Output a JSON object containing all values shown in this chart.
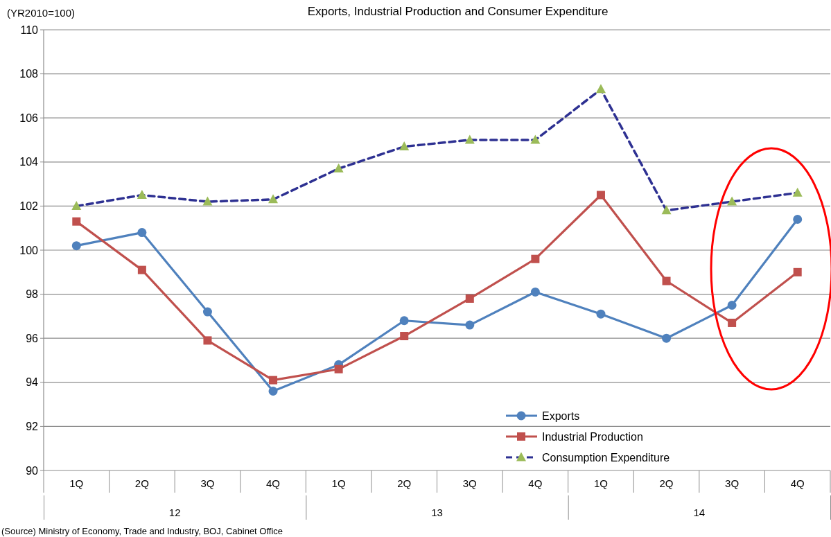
{
  "chart_data": {
    "type": "line",
    "title": "Exports, Industrial Production and Consumer Expenditure",
    "ylabel": "(YR2010=100)",
    "categories": [
      "1Q",
      "2Q",
      "3Q",
      "4Q",
      "1Q",
      "2Q",
      "3Q",
      "4Q",
      "1Q",
      "2Q",
      "3Q",
      "4Q"
    ],
    "annotations": [
      "12",
      "13",
      "14",
      "(Source) Ministry of Economy, Trade and Industry, BOJ, Cabinet Office"
    ],
    "series": [
      {
        "name": "Exports",
        "color": "#4f81bd",
        "marker": "circle",
        "line_style": "solid",
        "values": [
          100.2,
          100.8,
          97.2,
          93.6,
          94.8,
          96.8,
          96.6,
          98.1,
          97.1,
          96.0,
          97.5,
          101.4
        ]
      },
      {
        "name": "Industrial Production",
        "color": "#c0504d",
        "marker": "square",
        "line_style": "solid",
        "values": [
          101.3,
          99.1,
          95.9,
          94.1,
          94.6,
          96.1,
          97.8,
          99.6,
          102.5,
          98.6,
          96.7,
          99.0
        ]
      },
      {
        "name": "Consumption Expenditure",
        "color": "#9bbb59",
        "marker": "triangle",
        "line_style": "dashed",
        "values": [
          102.0,
          102.5,
          102.2,
          102.3,
          103.7,
          104.7,
          105.0,
          105.0,
          107.3,
          101.8,
          102.2,
          102.6
        ]
      }
    ],
    "ylim": [
      90,
      110
    ],
    "yticks": [
      90,
      92,
      94,
      96,
      98,
      100,
      102,
      104,
      106,
      108,
      110
    ],
    "grid": "y",
    "legend": "bottom right"
  }
}
